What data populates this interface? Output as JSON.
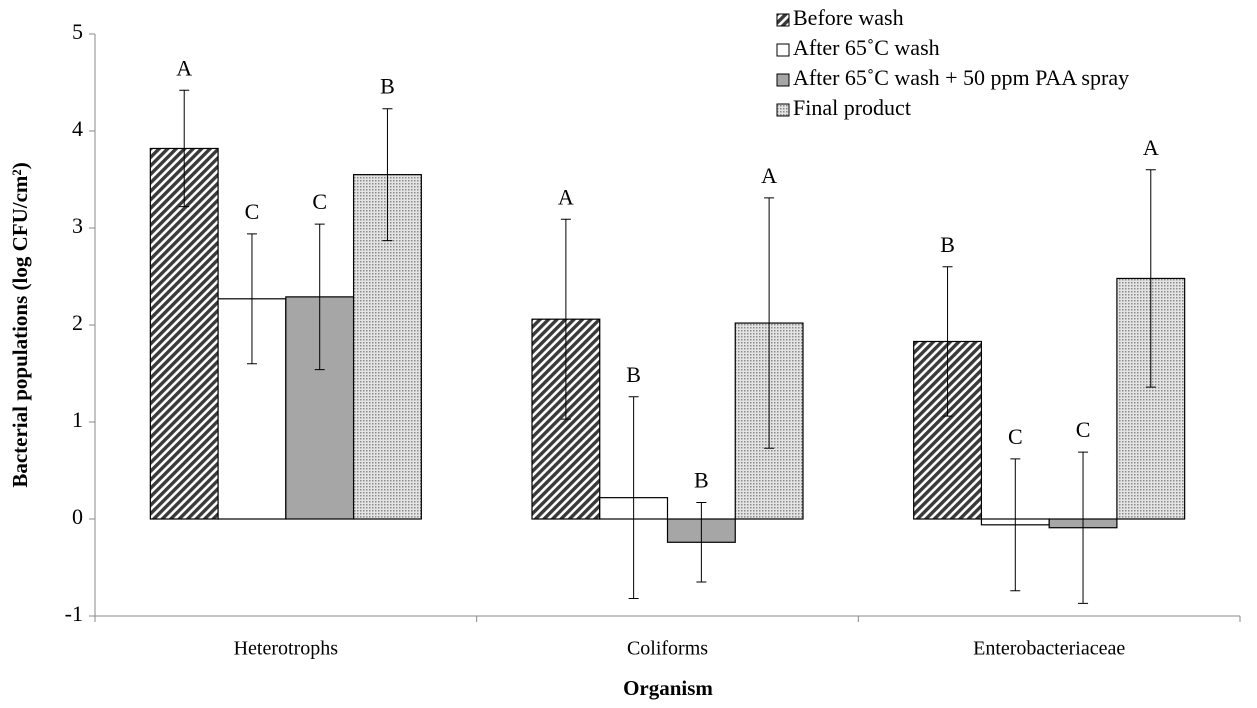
{
  "chart_data": {
    "type": "bar",
    "xlabel": "Organism",
    "ylabel": "Bacterial populations (log CFU/cm²)",
    "categories": [
      "Heterotrophs",
      "Coliforms",
      "Enterobacteriaceae"
    ],
    "series": [
      {
        "name": "Before wash",
        "color": "#3a3a3a",
        "pattern": "hatch",
        "values": [
          3.82,
          2.06,
          1.83
        ],
        "errors": [
          0.6,
          1.03,
          0.77
        ],
        "letters": [
          "A",
          "A",
          "B"
        ]
      },
      {
        "name": "After 65˚C wash",
        "color": "#ffffff",
        "pattern": "solid",
        "values": [
          2.27,
          0.22,
          -0.06
        ],
        "errors": [
          0.67,
          1.04,
          0.68
        ],
        "letters": [
          "C",
          "B",
          "C"
        ]
      },
      {
        "name": "After 65˚C wash + 50 ppm PAA spray",
        "color": "#a6a6a6",
        "pattern": "solid",
        "values": [
          2.29,
          -0.24,
          -0.09
        ],
        "errors": [
          0.75,
          0.41,
          0.78
        ],
        "letters": [
          "C",
          "B",
          "C"
        ]
      },
      {
        "name": "Final product",
        "color": "#9a9a9a",
        "pattern": "dots",
        "values": [
          3.55,
          2.02,
          2.48
        ],
        "errors": [
          0.68,
          1.29,
          1.12
        ],
        "letters": [
          "B",
          "A",
          "A"
        ]
      }
    ],
    "ylim": [
      -1,
      5
    ],
    "yticks": [
      -1,
      0,
      1,
      2,
      3,
      4,
      5
    ],
    "grid": false,
    "legend": "top-right"
  }
}
